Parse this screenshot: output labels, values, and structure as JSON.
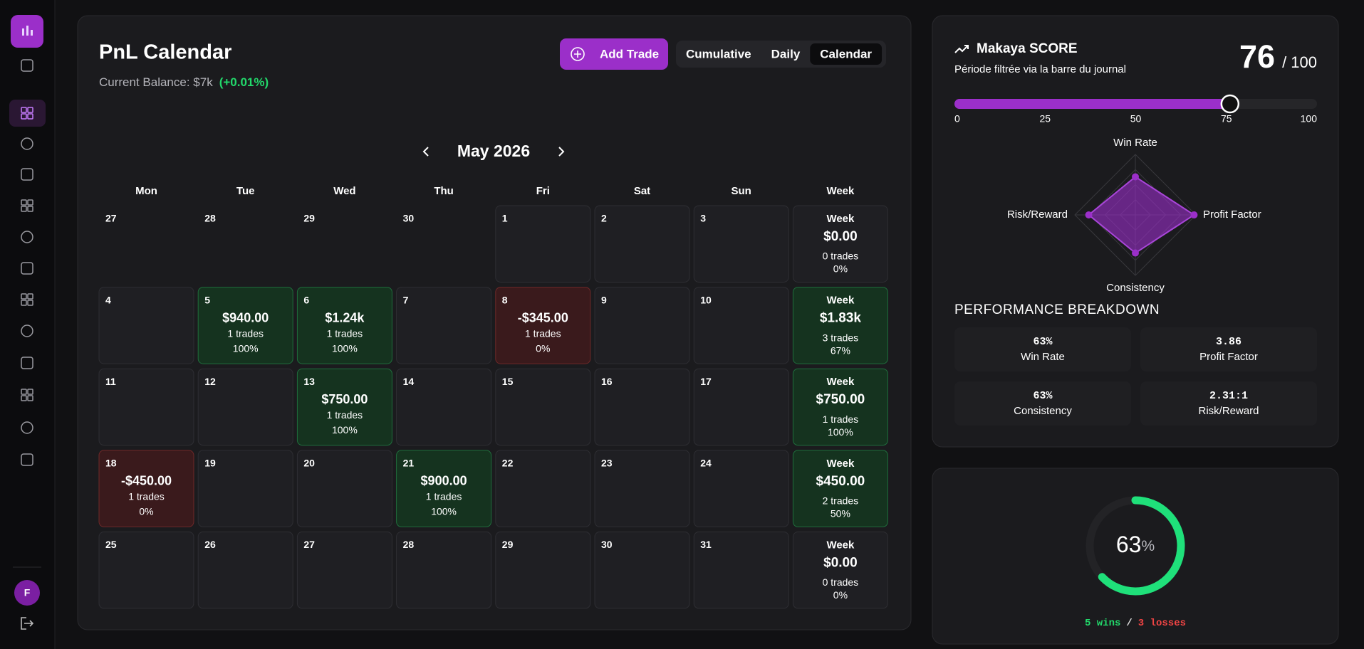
{
  "sidebar": {
    "avatar": "F"
  },
  "calendar": {
    "title": "PnL Calendar",
    "balance_label": "Current Balance: $7k",
    "balance_change": "(+0.01%)",
    "add_trade": "Add Trade",
    "views": [
      "Cumulative",
      "Daily",
      "Calendar"
    ],
    "active_view": 2,
    "month": "May 2026",
    "weekdays": [
      "Mon",
      "Tue",
      "Wed",
      "Thu",
      "Fri",
      "Sat",
      "Sun",
      "Week"
    ],
    "weeks": [
      {
        "days": [
          {
            "day": 27,
            "outside": true
          },
          {
            "day": 28,
            "outside": true
          },
          {
            "day": 29,
            "outside": true
          },
          {
            "day": 30,
            "outside": true
          },
          {
            "day": 1
          },
          {
            "day": 2
          },
          {
            "day": 3
          }
        ],
        "week": {
          "label": "Week",
          "pnl": "$0.00",
          "trades": "0 trades",
          "rate": "0%",
          "tone": "flat"
        }
      },
      {
        "days": [
          {
            "day": 4
          },
          {
            "day": 5,
            "pnl": "$940.00",
            "trades": "1 trades",
            "rate": "100%",
            "tone": "gain"
          },
          {
            "day": 6,
            "pnl": "$1.24k",
            "trades": "1 trades",
            "rate": "100%",
            "tone": "gain"
          },
          {
            "day": 7
          },
          {
            "day": 8,
            "pnl": "-$345.00",
            "trades": "1 trades",
            "rate": "0%",
            "tone": "loss"
          },
          {
            "day": 9
          },
          {
            "day": 10
          }
        ],
        "week": {
          "label": "Week",
          "pnl": "$1.83k",
          "trades": "3 trades",
          "rate": "67%",
          "tone": "gain"
        }
      },
      {
        "days": [
          {
            "day": 11
          },
          {
            "day": 12
          },
          {
            "day": 13,
            "pnl": "$750.00",
            "trades": "1 trades",
            "rate": "100%",
            "tone": "gain"
          },
          {
            "day": 14
          },
          {
            "day": 15
          },
          {
            "day": 16
          },
          {
            "day": 17
          }
        ],
        "week": {
          "label": "Week",
          "pnl": "$750.00",
          "trades": "1 trades",
          "rate": "100%",
          "tone": "gain"
        }
      },
      {
        "days": [
          {
            "day": 18,
            "pnl": "-$450.00",
            "trades": "1 trades",
            "rate": "0%",
            "tone": "loss"
          },
          {
            "day": 19
          },
          {
            "day": 20
          },
          {
            "day": 21,
            "pnl": "$900.00",
            "trades": "1 trades",
            "rate": "100%",
            "tone": "gain"
          },
          {
            "day": 22
          },
          {
            "day": 23
          },
          {
            "day": 24
          }
        ],
        "week": {
          "label": "Week",
          "pnl": "$450.00",
          "trades": "2 trades",
          "rate": "50%",
          "tone": "gain"
        }
      },
      {
        "days": [
          {
            "day": 25
          },
          {
            "day": 26
          },
          {
            "day": 27
          },
          {
            "day": 28
          },
          {
            "day": 29
          },
          {
            "day": 30
          },
          {
            "day": 31
          }
        ],
        "week": {
          "label": "Week",
          "pnl": "$0.00",
          "trades": "0 trades",
          "rate": "0%",
          "tone": "flat"
        }
      }
    ]
  },
  "score": {
    "title": "Makaya SCORE",
    "subtitle": "Période filtrée via la barre du journal",
    "value": 76,
    "max_label": "/ 100",
    "xlim": [
      0,
      100
    ],
    "xticks": [
      0,
      25,
      50,
      75,
      100
    ],
    "radar": {
      "axes": [
        "Win Rate",
        "Profit Factor",
        "Consistency",
        "Risk/Reward"
      ],
      "values": [
        63,
        97,
        63,
        77
      ],
      "rlim": [
        0,
        100
      ],
      "color": "#9b2fc9"
    },
    "breakdown_title": "PERFORMANCE BREAKDOWN",
    "breakdown": [
      {
        "value": "63%",
        "label": "Win Rate"
      },
      {
        "value": "3.86",
        "label": "Profit Factor"
      },
      {
        "value": "63%",
        "label": "Consistency"
      },
      {
        "value": "2.31:1",
        "label": "Risk/Reward"
      }
    ]
  },
  "gauge": {
    "value": 63,
    "unit": "%",
    "lim": [
      0,
      100
    ],
    "color": "#1fe07a",
    "wins": "5 wins",
    "separator": "/",
    "losses": "3 losses"
  }
}
